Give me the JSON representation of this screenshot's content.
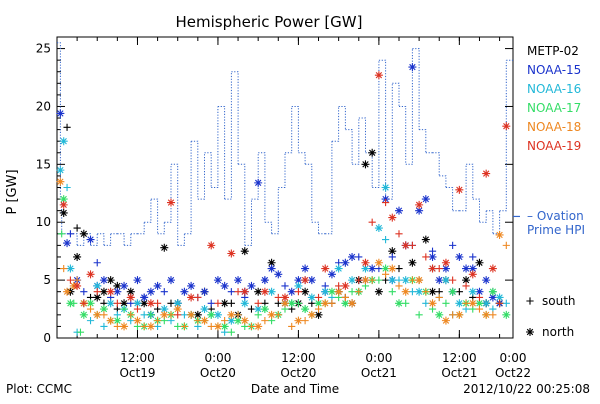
{
  "chart_data": {
    "type": "scatter",
    "title": "Hemispheric Power [GW]",
    "ylabel": "P [GW]",
    "xlabel": "Date and Time",
    "ylim": [
      0,
      26
    ],
    "y_ticks": [
      0,
      5,
      10,
      15,
      20,
      25
    ],
    "x_range_hours": [
      0,
      68
    ],
    "x_ticks": [
      {
        "hour": 12,
        "time": "12:00",
        "date": "Oct19"
      },
      {
        "hour": 24,
        "time": "0:00",
        "date": "Oct20"
      },
      {
        "hour": 36,
        "time": "12:00",
        "date": "Oct20"
      },
      {
        "hour": 48,
        "time": "0:00",
        "date": "Oct21"
      },
      {
        "hour": 60,
        "time": "12:00",
        "date": "Oct21"
      },
      {
        "hour": 72,
        "time": "0:00",
        "date": "Oct22"
      }
    ],
    "x_minor_step_hours": 3,
    "footer_left": "Plot: CCMC",
    "footer_right": "2012/10/22 00:25:08",
    "ovation_label_line1": "– Ovation",
    "ovation_label_line2": "Prime HPI",
    "marker_legend": [
      {
        "symbol": "+",
        "label": "south"
      },
      {
        "symbol": "*",
        "label": "north"
      }
    ],
    "ovation_hpi": {
      "name": "Ovation Prime HPI",
      "color": "#3366cc",
      "x": [
        0,
        0.5,
        0.7,
        2,
        3,
        4,
        5,
        6,
        7,
        8,
        9,
        10,
        11,
        12,
        13,
        14,
        15,
        16,
        17,
        18,
        19,
        20,
        21,
        22,
        23,
        24,
        25,
        26,
        27,
        28,
        29,
        30,
        31,
        32,
        33,
        34,
        35,
        36,
        37,
        38,
        39,
        40,
        41,
        42,
        43,
        44,
        45,
        46,
        47,
        48,
        49,
        50,
        51,
        52,
        53,
        54,
        55,
        56,
        57,
        58,
        59,
        60,
        61,
        62,
        63,
        64,
        65,
        66,
        67,
        68
      ],
      "y": [
        25.5,
        12,
        9,
        9,
        8,
        9,
        8,
        9,
        8,
        9,
        9,
        8,
        9,
        9,
        10,
        12,
        9,
        10,
        15,
        8,
        9,
        17,
        12,
        16,
        13,
        20,
        12,
        23,
        15,
        8,
        12,
        16,
        10,
        9,
        13,
        16,
        20,
        16,
        15,
        10,
        9,
        9,
        17,
        20,
        18,
        15,
        19,
        16,
        13,
        24,
        12,
        22,
        20,
        15,
        25,
        18,
        16,
        16,
        14,
        13,
        11,
        11,
        15,
        12,
        10,
        11,
        9,
        11,
        24,
        24
      ]
    },
    "series": [
      {
        "name": "METP-02",
        "color": "#000000",
        "north": {
          "x": [
            1,
            2,
            3,
            4,
            6,
            7,
            8,
            9,
            10,
            11,
            13,
            14,
            16,
            18,
            21,
            22,
            25,
            27,
            28,
            30,
            32,
            34,
            36,
            37,
            39,
            42,
            44,
            45,
            46,
            47,
            48,
            50,
            53,
            55,
            56,
            58,
            61,
            63,
            64,
            66
          ],
          "y": [
            10.8,
            4,
            7,
            9,
            3.5,
            4,
            5,
            4.5,
            3,
            4,
            3,
            2,
            7.8,
            3,
            2,
            4,
            3,
            2,
            7.5,
            4,
            6.5,
            3,
            3,
            4,
            2,
            4,
            3,
            5,
            15,
            16,
            4,
            7.5,
            6.5,
            8.5,
            4,
            5,
            5,
            6.5,
            3,
            3
          ]
        },
        "south": {
          "x": [
            1.5,
            3,
            5,
            7,
            9,
            12,
            15,
            17,
            20,
            23,
            26,
            29,
            31,
            33,
            35,
            38,
            41,
            43,
            45,
            49,
            51,
            54,
            57,
            60,
            62,
            64
          ],
          "y": [
            18.2,
            9.5,
            3.5,
            3,
            2.5,
            3,
            2.5,
            3,
            2,
            2.5,
            3,
            2.5,
            3,
            3,
            2.5,
            3,
            3,
            3.5,
            4,
            5,
            6,
            5,
            4,
            4,
            3.5,
            3
          ]
        }
      },
      {
        "name": "NOAA-15",
        "color": "#1a33cc",
        "north": {
          "x": [
            0.5,
            1.5,
            3,
            5,
            6,
            7,
            9,
            10,
            12,
            13,
            14,
            15,
            17,
            19,
            20,
            22,
            24,
            25,
            27,
            28,
            29,
            30,
            31,
            32,
            33,
            35,
            36,
            37,
            38,
            40,
            41,
            43,
            44,
            46,
            47,
            49,
            50,
            51,
            52,
            53,
            54,
            55,
            56,
            57,
            58,
            59,
            60,
            61,
            62,
            63,
            64,
            65,
            66
          ],
          "y": [
            19.4,
            8.2,
            5,
            8.5,
            4.5,
            5,
            4,
            4.5,
            5,
            3.5,
            4,
            4.5,
            5,
            4,
            4.5,
            4,
            5,
            4.5,
            5,
            4,
            4.5,
            13.4,
            5,
            6,
            5.5,
            4,
            5,
            6,
            5,
            4,
            5.5,
            6.5,
            7,
            5,
            6,
            12,
            5,
            11,
            8,
            23.4,
            11,
            12,
            7,
            5,
            6,
            4,
            7,
            6,
            6,
            4,
            5,
            3.5,
            3
          ]
        },
        "south": {
          "x": [
            2,
            4,
            6,
            8,
            11,
            13,
            16,
            18,
            21,
            23,
            26,
            28,
            31,
            34,
            37,
            40,
            42,
            45,
            48,
            50,
            53,
            56,
            59,
            62,
            65
          ],
          "y": [
            9,
            4,
            6.5,
            3.5,
            3,
            3.5,
            4,
            3,
            3.5,
            3,
            4,
            3.5,
            5,
            4.5,
            5,
            4.5,
            6.5,
            7,
            6,
            7,
            8,
            7.5,
            8,
            7,
            4
          ]
        }
      },
      {
        "name": "NOAA-16",
        "color": "#22b8d8",
        "north": {
          "x": [
            0.5,
            1,
            2,
            4,
            6,
            8,
            10,
            12,
            14,
            16,
            18,
            20,
            22,
            24,
            26,
            28,
            30,
            32,
            34,
            36,
            38,
            40,
            42,
            44,
            46,
            48,
            49,
            50,
            52,
            54,
            56,
            58,
            60,
            62,
            64,
            66
          ],
          "y": [
            14.5,
            17,
            6,
            3,
            4.5,
            3,
            2.5,
            3,
            2,
            2.5,
            3,
            2,
            2.5,
            2,
            1.5,
            3,
            2.5,
            4,
            3,
            4.5,
            3.5,
            4,
            6,
            5,
            6,
            9.5,
            13,
            5,
            5,
            4,
            6,
            5,
            3,
            4,
            3,
            3.5
          ]
        },
        "south": {
          "x": [
            1.5,
            3,
            5,
            7,
            9,
            11,
            13,
            15,
            17,
            19,
            21,
            23,
            25,
            27,
            29,
            31,
            33,
            35,
            37,
            39,
            41,
            43,
            45,
            47,
            49,
            51,
            53,
            55,
            57,
            59,
            61,
            63,
            65,
            67
          ],
          "y": [
            13,
            0.5,
            1.5,
            1,
            2,
            1.5,
            2,
            1,
            1.5,
            2,
            1,
            2,
            0.5,
            2,
            1,
            2.5,
            2,
            3,
            2.5,
            3,
            3.5,
            3,
            4,
            5,
            8.5,
            5,
            4,
            3,
            3.5,
            2,
            2.5,
            3,
            2.5,
            3
          ]
        }
      },
      {
        "name": "NOAA-17",
        "color": "#33dd66",
        "north": {
          "x": [
            1,
            2,
            4,
            5,
            7,
            9,
            11,
            13,
            15,
            17,
            19,
            21,
            23,
            25,
            27,
            29,
            31,
            33,
            35,
            37,
            39,
            41,
            43,
            45,
            47,
            49,
            51,
            53,
            55,
            57,
            59,
            61,
            63,
            65,
            67
          ],
          "y": [
            12,
            3,
            2,
            3,
            2.5,
            1.5,
            2,
            1,
            1.5,
            2,
            1,
            1.5,
            2,
            1,
            1.5,
            1,
            2.5,
            2,
            3,
            2.5,
            3,
            4,
            3,
            4,
            5,
            6,
            3,
            5,
            4,
            2,
            4,
            3,
            3,
            4,
            2
          ]
        },
        "south": {
          "x": [
            0.7,
            2.5,
            3.5,
            6,
            8,
            10,
            12,
            14,
            16,
            18,
            20,
            22,
            24,
            26,
            28,
            30,
            32,
            34,
            36,
            38,
            40,
            42,
            44,
            46,
            48,
            50,
            52,
            54,
            56,
            58,
            60,
            62,
            64,
            66
          ],
          "y": [
            9,
            3,
            0.5,
            2,
            1.5,
            2.5,
            1,
            2,
            1.5,
            1,
            2,
            1.5,
            1,
            0.5,
            1,
            2,
            1.5,
            2.5,
            3,
            2,
            3,
            3.5,
            4,
            4.5,
            5,
            4,
            3,
            2,
            2.5,
            3,
            2,
            2.5,
            2,
            3
          ]
        }
      },
      {
        "name": "NOAA-18",
        "color": "#ee8822",
        "north": {
          "x": [
            0.5,
            1.5,
            2.5,
            4,
            6,
            8,
            10,
            12,
            14,
            16,
            18,
            20,
            22,
            24,
            26,
            28,
            30,
            32,
            34,
            36,
            38,
            40,
            42,
            44,
            46,
            48,
            50,
            52,
            54,
            56,
            58,
            60,
            62,
            64,
            66
          ],
          "y": [
            13.5,
            4,
            4.5,
            3,
            2,
            1.5,
            1,
            1.5,
            1,
            2,
            2.5,
            2,
            1.5,
            1,
            2,
            1.5,
            1,
            2,
            3,
            1.5,
            2,
            3,
            4,
            3,
            5,
            6.5,
            6,
            4,
            5,
            3,
            1.5,
            2,
            3,
            2,
            8.9
          ]
        },
        "south": {
          "x": [
            1,
            3,
            5,
            7,
            9,
            11,
            13,
            15,
            17,
            19,
            21,
            23,
            25,
            27,
            29,
            31,
            33,
            35,
            37,
            39,
            41,
            43,
            45,
            47,
            49,
            51,
            53,
            55,
            57,
            59,
            61,
            63,
            65,
            67
          ],
          "y": [
            6,
            5,
            2.5,
            2,
            1,
            2,
            1,
            1.5,
            2,
            1,
            1.5,
            1,
            1.5,
            2,
            1,
            1.5,
            2,
            1,
            1.5,
            2.5,
            3,
            3.5,
            4,
            5,
            5.5,
            4.5,
            5,
            4,
            3.5,
            2,
            3,
            2.5,
            2,
            8
          ]
        }
      },
      {
        "name": "NOAA-19",
        "color": "#dd3322",
        "north": {
          "x": [
            1,
            3,
            5,
            8,
            11,
            14,
            17,
            20,
            23,
            26,
            28,
            31,
            34,
            37,
            40,
            43,
            46,
            48,
            50,
            52,
            54,
            56,
            58,
            60,
            62,
            64,
            65,
            67
          ],
          "y": [
            11.5,
            4.5,
            5.5,
            4,
            3.5,
            3,
            11.7,
            3.5,
            8,
            7.3,
            4,
            4,
            3.5,
            5,
            6,
            4.5,
            6.5,
            22.7,
            10.4,
            8,
            11.5,
            6,
            6.5,
            12.8,
            5.5,
            14.2,
            6,
            18.3
          ]
        },
        "south": {
          "x": [
            2,
            4,
            6,
            9,
            12,
            15,
            18,
            21,
            24,
            27,
            30,
            33,
            36,
            39,
            42,
            45,
            47,
            49,
            51,
            53,
            55,
            57,
            59,
            61,
            63,
            66
          ],
          "y": [
            5,
            3,
            4,
            3,
            2.5,
            3,
            2,
            3.5,
            3,
            4,
            3,
            3.5,
            4,
            3.5,
            4.5,
            5,
            10,
            11.7,
            9,
            8,
            7,
            6,
            5,
            4.5,
            3.5,
            3
          ]
        }
      }
    ]
  }
}
